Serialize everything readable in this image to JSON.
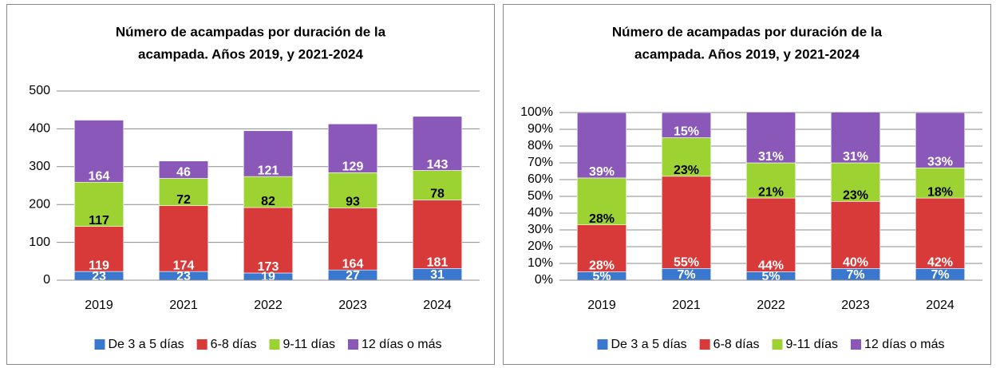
{
  "chart_data": [
    {
      "type": "stacked_bar",
      "title": [
        "Número de acampadas por duración de la",
        "acampada. Años 2019, y 2021-2024"
      ],
      "categories": [
        "2019",
        "2021",
        "2022",
        "2023",
        "2024"
      ],
      "series": [
        {
          "name": "De 3 a 5 días",
          "color": "#3a78d0",
          "label_color": "#ffffff",
          "values": [
            23,
            23,
            19,
            27,
            31
          ]
        },
        {
          "name": "6-8 días",
          "color": "#d83a3a",
          "label_color": "#ffffff",
          "values": [
            119,
            174,
            173,
            164,
            181
          ]
        },
        {
          "name": "9-11 días",
          "color": "#9cd332",
          "label_color": "#000000",
          "values": [
            117,
            72,
            82,
            93,
            78
          ]
        },
        {
          "name": "12 días o más",
          "color": "#8a58b8",
          "label_color": "#ffffff",
          "values": [
            164,
            46,
            121,
            129,
            143
          ]
        }
      ],
      "ylim": [
        0,
        500
      ],
      "yticks": [
        0,
        100,
        200,
        300,
        400,
        500
      ],
      "grid": true,
      "legend": "bottom"
    },
    {
      "type": "stacked_bar",
      "title": [
        "Número de acampadas por duración de la",
        "acampada. Años 2019, y 2021-2024"
      ],
      "categories": [
        "2019",
        "2021",
        "2022",
        "2023",
        "2024"
      ],
      "series": [
        {
          "name": "De 3 a 5 días",
          "color": "#3a78d0",
          "label_color": "#ffffff",
          "values": [
            5,
            7,
            5,
            7,
            7
          ],
          "value_labels": [
            "5%",
            "7%",
            "5%",
            "7%",
            "7%"
          ]
        },
        {
          "name": "6-8 días",
          "color": "#d83a3a",
          "label_color": "#ffffff",
          "values": [
            28,
            55,
            44,
            40,
            42
          ],
          "value_labels": [
            "28%",
            "55%",
            "44%",
            "40%",
            "42%"
          ]
        },
        {
          "name": "9-11 días",
          "color": "#9cd332",
          "label_color": "#000000",
          "values": [
            28,
            23,
            21,
            23,
            18
          ],
          "value_labels": [
            "28%",
            "23%",
            "21%",
            "23%",
            "18%"
          ]
        },
        {
          "name": "12 días o más",
          "color": "#8a58b8",
          "label_color": "#ffffff",
          "values": [
            39,
            15,
            31,
            31,
            33
          ],
          "value_labels": [
            "39%",
            "15%",
            "31%",
            "31%",
            "33%"
          ]
        }
      ],
      "ylim": [
        0,
        100
      ],
      "yticks": [
        {
          "value": 0,
          "label": "0%"
        },
        {
          "value": 10,
          "label": "10%"
        },
        {
          "value": 20,
          "label": "20%"
        },
        {
          "value": 30,
          "label": "30%"
        },
        {
          "value": 40,
          "label": "40%"
        },
        {
          "value": 50,
          "label": "50%"
        },
        {
          "value": 60,
          "label": "60%"
        },
        {
          "value": 70,
          "label": "70%"
        },
        {
          "value": 80,
          "label": "80%"
        },
        {
          "value": 90,
          "label": "90%"
        },
        {
          "value": 100,
          "label": "100%"
        }
      ],
      "grid": true,
      "legend": "bottom"
    }
  ]
}
